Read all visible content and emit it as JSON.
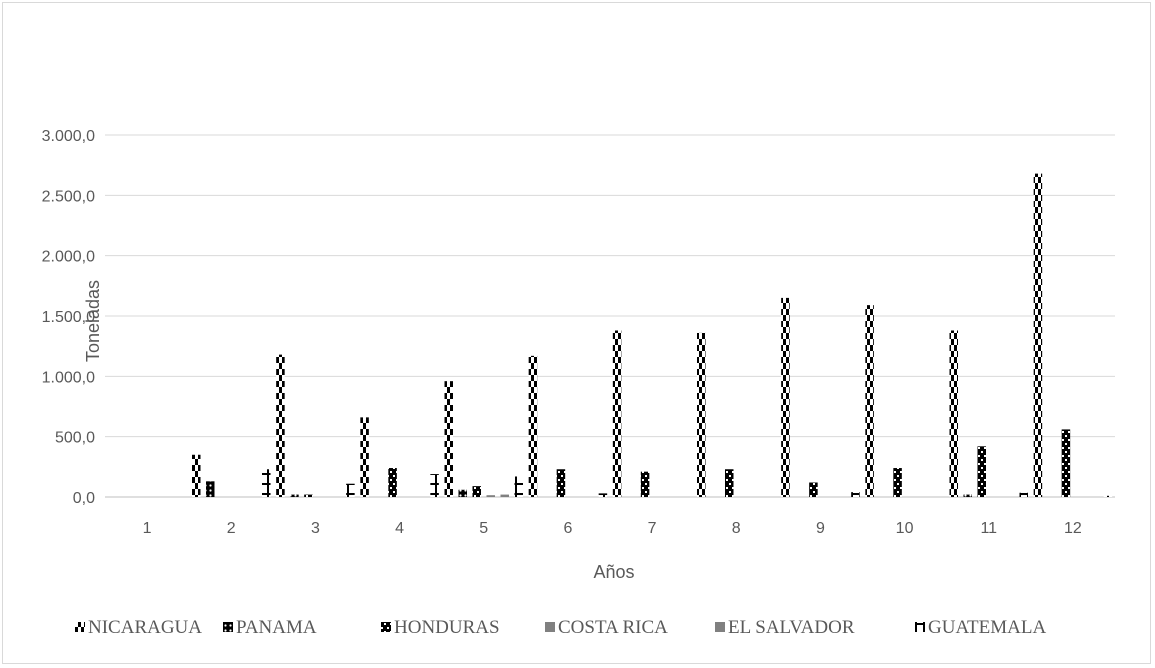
{
  "chart_data": {
    "type": "bar",
    "title": "",
    "xlabel": "Años",
    "ylabel": "Toneladas",
    "ylim": [
      0,
      3000
    ],
    "yticks": [
      "0,0",
      "500,0",
      "1.000,0",
      "1.500,0",
      "2.000,0",
      "2.500,0",
      "3.000,0"
    ],
    "ytick_values": [
      0,
      500,
      1000,
      1500,
      2000,
      2500,
      3000
    ],
    "categories": [
      "1",
      "2",
      "3",
      "4",
      "5",
      "6",
      "7",
      "8",
      "9",
      "10",
      "11",
      "12"
    ],
    "grid": true,
    "legend_position": "bottom",
    "series": [
      {
        "name": "NICARAGUA",
        "pattern": "checker-white",
        "values": [
          0,
          350,
          1180,
          660,
          960,
          1170,
          1380,
          1360,
          1650,
          1590,
          1380,
          2680
        ]
      },
      {
        "name": "PANAMA",
        "pattern": "dots",
        "values": [
          0,
          130,
          20,
          0,
          60,
          0,
          0,
          0,
          0,
          0,
          20,
          0
        ]
      },
      {
        "name": "HONDURAS",
        "pattern": "checker-black",
        "values": [
          0,
          0,
          20,
          240,
          90,
          230,
          210,
          230,
          120,
          240,
          420,
          560
        ]
      },
      {
        "name": "COSTA RICA",
        "pattern": "solid-gray",
        "values": [
          0,
          0,
          0,
          0,
          15,
          0,
          0,
          0,
          0,
          0,
          0,
          0
        ]
      },
      {
        "name": "EL SALVADOR",
        "pattern": "solid-gray",
        "values": [
          0,
          0,
          0,
          0,
          20,
          0,
          0,
          0,
          0,
          0,
          0,
          0
        ]
      },
      {
        "name": "GUATEMALA",
        "pattern": "bracket",
        "values": [
          0,
          230,
          110,
          190,
          170,
          30,
          0,
          0,
          40,
          0,
          35,
          10
        ]
      }
    ],
    "colors": {
      "axis_text": "#595959",
      "grid": "#d9d9d9",
      "bar": "#000000",
      "gray": "#808080"
    }
  }
}
